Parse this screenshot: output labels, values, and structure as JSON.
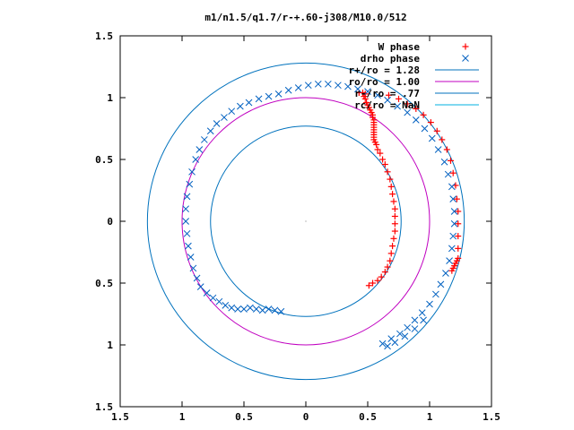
{
  "chart_data": {
    "type": "scatter",
    "title": "m1/n1.5/q1.7/r-+.60-j308/M10.0/512",
    "xlim": [
      -1.5,
      1.5
    ],
    "ylim": [
      -1.5,
      1.5
    ],
    "x_ticks": [
      {
        "value": -1.5,
        "label": "1.5"
      },
      {
        "value": -1.0,
        "label": "1"
      },
      {
        "value": -0.5,
        "label": "0.5"
      },
      {
        "value": 0,
        "label": "0"
      },
      {
        "value": 0.5,
        "label": "0.5"
      },
      {
        "value": 1.0,
        "label": "1"
      },
      {
        "value": 1.5,
        "label": "1.5"
      }
    ],
    "y_ticks": [
      {
        "value": 1.5,
        "label": "1.5"
      },
      {
        "value": 1.0,
        "label": "1"
      },
      {
        "value": 0.5,
        "label": "0.5"
      },
      {
        "value": 0,
        "label": "0"
      },
      {
        "value": -0.5,
        "label": "0.5"
      },
      {
        "value": -1.0,
        "label": "1"
      },
      {
        "value": -1.5,
        "label": "1.5"
      }
    ],
    "legend_position": "top-right",
    "grid": false,
    "series": [
      {
        "name": "W phase",
        "marker": "plus",
        "color": "#ff0000",
        "points": [
          [
            0.43,
            1.04
          ],
          [
            0.46,
            1.04
          ],
          [
            0.48,
            1.03
          ],
          [
            0.47,
            1.01
          ],
          [
            0.48,
            0.99
          ],
          [
            0.49,
            0.96
          ],
          [
            0.5,
            0.94
          ],
          [
            0.51,
            0.92
          ],
          [
            0.52,
            0.9
          ],
          [
            0.53,
            0.88
          ],
          [
            0.54,
            0.86
          ],
          [
            0.54,
            0.84
          ],
          [
            0.55,
            0.82
          ],
          [
            0.55,
            0.8
          ],
          [
            0.55,
            0.78
          ],
          [
            0.55,
            0.76
          ],
          [
            0.55,
            0.74
          ],
          [
            0.55,
            0.72
          ],
          [
            0.55,
            0.7
          ],
          [
            0.55,
            0.68
          ],
          [
            0.55,
            0.66
          ],
          [
            0.56,
            0.64
          ],
          [
            0.57,
            0.62
          ],
          [
            0.58,
            0.58
          ],
          [
            0.6,
            0.55
          ],
          [
            0.62,
            0.5
          ],
          [
            0.64,
            0.46
          ],
          [
            0.66,
            0.4
          ],
          [
            0.68,
            0.34
          ],
          [
            0.69,
            0.28
          ],
          [
            0.7,
            0.22
          ],
          [
            0.71,
            0.16
          ],
          [
            0.72,
            0.1
          ],
          [
            0.72,
            0.04
          ],
          [
            0.72,
            -0.02
          ],
          [
            0.72,
            -0.08
          ],
          [
            0.71,
            -0.14
          ],
          [
            0.7,
            -0.2
          ],
          [
            0.69,
            -0.26
          ],
          [
            0.68,
            -0.32
          ],
          [
            0.66,
            -0.37
          ],
          [
            0.64,
            -0.41
          ],
          [
            0.61,
            -0.45
          ],
          [
            0.58,
            -0.48
          ],
          [
            0.54,
            -0.5
          ],
          [
            0.51,
            -0.52
          ],
          [
            0.67,
            1.02
          ],
          [
            0.75,
            0.99
          ],
          [
            0.82,
            0.95
          ],
          [
            0.89,
            0.91
          ],
          [
            0.95,
            0.86
          ],
          [
            1.01,
            0.8
          ],
          [
            1.06,
            0.73
          ],
          [
            1.1,
            0.66
          ],
          [
            1.14,
            0.58
          ],
          [
            1.17,
            0.49
          ],
          [
            1.19,
            0.39
          ],
          [
            1.21,
            0.29
          ],
          [
            1.22,
            0.18
          ],
          [
            1.23,
            0.08
          ],
          [
            1.23,
            -0.02
          ],
          [
            1.23,
            -0.12
          ],
          [
            1.23,
            -0.22
          ],
          [
            1.23,
            -0.3
          ],
          [
            1.22,
            -0.32
          ],
          [
            1.21,
            -0.34
          ],
          [
            1.2,
            -0.36
          ],
          [
            1.19,
            -0.38
          ],
          [
            1.18,
            -0.4
          ]
        ]
      },
      {
        "name": "drho phase",
        "marker": "cross",
        "color": "#0060c0",
        "points": [
          [
            -0.35,
            -0.72
          ],
          [
            -0.3,
            -0.71
          ],
          [
            -0.25,
            -0.72
          ],
          [
            -0.2,
            -0.73
          ],
          [
            -0.4,
            -0.71
          ],
          [
            -0.45,
            -0.7
          ],
          [
            -0.5,
            -0.71
          ],
          [
            -0.55,
            -0.71
          ],
          [
            -0.6,
            -0.7
          ],
          [
            -0.65,
            -0.68
          ],
          [
            -0.7,
            -0.65
          ],
          [
            -0.75,
            -0.62
          ],
          [
            -0.8,
            -0.58
          ],
          [
            -0.85,
            -0.53
          ],
          [
            -0.88,
            -0.46
          ],
          [
            -0.91,
            -0.38
          ],
          [
            -0.93,
            -0.29
          ],
          [
            -0.95,
            -0.2
          ],
          [
            -0.96,
            -0.1
          ],
          [
            -0.97,
            0.0
          ],
          [
            -0.97,
            0.1
          ],
          [
            -0.96,
            0.2
          ],
          [
            -0.94,
            0.3
          ],
          [
            -0.92,
            0.4
          ],
          [
            -0.89,
            0.5
          ],
          [
            -0.86,
            0.58
          ],
          [
            -0.82,
            0.66
          ],
          [
            -0.77,
            0.73
          ],
          [
            -0.72,
            0.79
          ],
          [
            -0.66,
            0.84
          ],
          [
            -0.6,
            0.89
          ],
          [
            -0.53,
            0.93
          ],
          [
            -0.46,
            0.96
          ],
          [
            -0.38,
            0.99
          ],
          [
            -0.3,
            1.01
          ],
          [
            -0.22,
            1.03
          ],
          [
            -0.14,
            1.06
          ],
          [
            -0.06,
            1.08
          ],
          [
            0.02,
            1.1
          ],
          [
            0.1,
            1.11
          ],
          [
            0.18,
            1.11
          ],
          [
            0.26,
            1.1
          ],
          [
            0.34,
            1.09
          ],
          [
            0.42,
            1.07
          ],
          [
            0.5,
            1.05
          ],
          [
            0.58,
            1.02
          ],
          [
            0.66,
            0.98
          ],
          [
            0.74,
            0.93
          ],
          [
            0.82,
            0.88
          ],
          [
            0.89,
            0.82
          ],
          [
            0.96,
            0.75
          ],
          [
            1.02,
            0.67
          ],
          [
            1.07,
            0.58
          ],
          [
            1.12,
            0.48
          ],
          [
            1.15,
            0.38
          ],
          [
            1.18,
            0.28
          ],
          [
            1.19,
            0.18
          ],
          [
            1.2,
            0.08
          ],
          [
            1.2,
            -0.02
          ],
          [
            1.19,
            -0.12
          ],
          [
            1.18,
            -0.22
          ],
          [
            1.16,
            -0.32
          ],
          [
            1.13,
            -0.42
          ],
          [
            1.09,
            -0.51
          ],
          [
            1.05,
            -0.59
          ],
          [
            1.0,
            -0.67
          ],
          [
            0.94,
            -0.74
          ],
          [
            0.88,
            -0.8
          ],
          [
            0.82,
            -0.86
          ],
          [
            0.76,
            -0.91
          ],
          [
            0.69,
            -0.95
          ],
          [
            0.62,
            -0.99
          ],
          [
            0.66,
            -1.01
          ],
          [
            0.72,
            -0.98
          ],
          [
            0.8,
            -0.93
          ],
          [
            0.88,
            -0.87
          ],
          [
            0.95,
            -0.8
          ]
        ]
      }
    ],
    "circles": [
      {
        "name": "r+/ro = 1.28",
        "label": "r+/ro = 1.28",
        "r": 1.28,
        "color": "#0072bd"
      },
      {
        "name": "ro/ro = 1.00",
        "label": "ro/ro = 1.00",
        "r": 1.0,
        "color": "#c000c0"
      },
      {
        "name": "r-/ro = .77",
        "label": "r-/ro = .77",
        "r": 0.77,
        "color": "#0072bd"
      },
      {
        "name": "rc/ro = NaN",
        "label": "rc/ro = NaN",
        "r": null,
        "color": "#00b0e0"
      }
    ]
  }
}
